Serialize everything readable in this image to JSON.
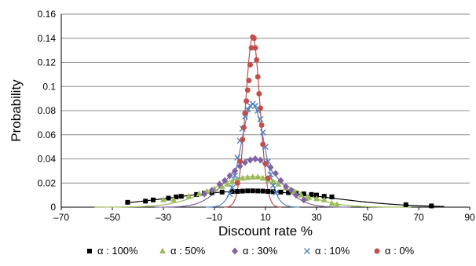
{
  "chart_data": {
    "type": "scatter",
    "title": "",
    "xlabel": "Discount rate %",
    "ylabel": "Probability",
    "xlim": [
      -70,
      90
    ],
    "ylim": [
      0,
      0.16
    ],
    "x_ticks": [
      -70,
      -50,
      -30,
      -10,
      10,
      30,
      50,
      70,
      90
    ],
    "x_tick_labels": [
      "–70",
      "–50",
      "–30",
      "–10",
      "10",
      "30",
      "50",
      "70",
      "90"
    ],
    "y_ticks": [
      0,
      0.02,
      0.04,
      0.06,
      0.08,
      0.1,
      0.12,
      0.14,
      0.16
    ],
    "y_tick_labels": [
      "0",
      "0.02",
      "0.04",
      "0.06",
      "0.08",
      "0.1",
      "0.12",
      "0.14",
      "0.16"
    ],
    "grid": "horizontal",
    "legend_position": "bottom",
    "series": [
      {
        "name": "α : 100%",
        "marker": "square",
        "color": "#000000",
        "line_color": "#000000",
        "curve": {
          "mean": 4,
          "sd": 30,
          "peak": 0.0133
        },
        "points": [
          [
            -44,
            0.004
          ],
          [
            -37,
            0.005
          ],
          [
            -34,
            0.006
          ],
          [
            -28,
            0.0075
          ],
          [
            -25,
            0.0085
          ],
          [
            -23,
            0.009
          ],
          [
            -17,
            0.0105
          ],
          [
            -14,
            0.0115
          ],
          [
            -11,
            0.012
          ],
          [
            -7,
            0.0125
          ],
          [
            -3,
            0.013
          ],
          [
            -1,
            0.013
          ],
          [
            1,
            0.0133
          ],
          [
            3,
            0.0135
          ],
          [
            5,
            0.0135
          ],
          [
            7,
            0.0134
          ],
          [
            9,
            0.0133
          ],
          [
            11,
            0.013
          ],
          [
            13,
            0.0128
          ],
          [
            16,
            0.0125
          ],
          [
            19,
            0.012
          ],
          [
            22,
            0.0112
          ],
          [
            25,
            0.011
          ],
          [
            28,
            0.0105
          ],
          [
            30,
            0.01
          ],
          [
            33,
            0.009
          ],
          [
            36,
            0.0085
          ],
          [
            65,
            0.002
          ],
          [
            75,
            0.001
          ]
        ]
      },
      {
        "name": "α : 50%",
        "marker": "triangle",
        "color": "#9BBB59",
        "line_color": "#9BBB59",
        "curve": {
          "mean": 5,
          "sd": 15.5,
          "peak": 0.0255
        },
        "points": [
          [
            -26,
            0.006
          ],
          [
            -20,
            0.009
          ],
          [
            -16,
            0.011
          ],
          [
            -13,
            0.013
          ],
          [
            -10,
            0.015
          ],
          [
            -7,
            0.017
          ],
          [
            -5,
            0.019
          ],
          [
            -3,
            0.021
          ],
          [
            -1,
            0.023
          ],
          [
            1,
            0.024
          ],
          [
            3,
            0.0245
          ],
          [
            5,
            0.025
          ],
          [
            7,
            0.025
          ],
          [
            9,
            0.024
          ],
          [
            11,
            0.0225
          ],
          [
            13,
            0.021
          ],
          [
            15,
            0.019
          ],
          [
            18,
            0.016
          ],
          [
            21,
            0.013
          ],
          [
            24,
            0.01
          ],
          [
            27,
            0.008
          ],
          [
            30,
            0.007
          ],
          [
            33,
            0.006
          ],
          [
            36,
            0.003
          ],
          [
            38,
            0.002
          ],
          [
            -30,
            0.006
          ],
          [
            26,
            0.007
          ]
        ]
      },
      {
        "name": "α : 30%",
        "marker": "diamond",
        "color": "#8064A2",
        "line_color": "#8064A2",
        "curve": {
          "mean": 5,
          "sd": 9.6,
          "peak": 0.0405
        },
        "points": [
          [
            -14,
            0.011
          ],
          [
            -11,
            0.014
          ],
          [
            -8,
            0.019
          ],
          [
            -6,
            0.022
          ],
          [
            -4,
            0.026
          ],
          [
            -2,
            0.03
          ],
          [
            0,
            0.034
          ],
          [
            2,
            0.037
          ],
          [
            4,
            0.039
          ],
          [
            6,
            0.04
          ],
          [
            8,
            0.039
          ],
          [
            10,
            0.036
          ],
          [
            12,
            0.033
          ],
          [
            14,
            0.028
          ],
          [
            16,
            0.022
          ],
          [
            18,
            0.017
          ],
          [
            20,
            0.014
          ],
          [
            22,
            0.01
          ],
          [
            25,
            0.006
          ]
        ]
      },
      {
        "name": "α : 10%",
        "marker": "x",
        "color": "#4F81BD",
        "line_color": "#4F81BD",
        "curve": {
          "mean": 5,
          "sd": 4.6,
          "peak": 0.085
        },
        "points": [
          [
            -4,
            0.011
          ],
          [
            -3,
            0.016
          ],
          [
            -2,
            0.026
          ],
          [
            -1,
            0.041
          ],
          [
            0,
            0.055
          ],
          [
            1,
            0.065
          ],
          [
            2,
            0.075
          ],
          [
            3,
            0.081
          ],
          [
            4,
            0.084
          ],
          [
            5,
            0.0855
          ],
          [
            6,
            0.084
          ],
          [
            7,
            0.08
          ],
          [
            8,
            0.073
          ],
          [
            9,
            0.062
          ],
          [
            10,
            0.05
          ],
          [
            11,
            0.038
          ],
          [
            12,
            0.027
          ],
          [
            13,
            0.018
          ],
          [
            14,
            0.012
          ]
        ]
      },
      {
        "name": "α : 0%",
        "marker": "circle",
        "color": "#C0504D",
        "line_color": "#C0504D",
        "curve": {
          "mean": 5,
          "sd": 2.8,
          "peak": 0.141
        },
        "points": [
          [
            -1,
            0.02
          ],
          [
            0,
            0.038
          ],
          [
            1,
            0.056
          ],
          [
            1.5,
            0.066
          ],
          [
            2,
            0.078
          ],
          [
            2.5,
            0.088
          ],
          [
            3,
            0.097
          ],
          [
            3.5,
            0.105
          ],
          [
            4,
            0.118
          ],
          [
            4.5,
            0.132
          ],
          [
            5,
            0.141
          ],
          [
            5.5,
            0.14
          ],
          [
            6,
            0.132
          ],
          [
            6.5,
            0.122
          ],
          [
            7,
            0.108
          ],
          [
            7.5,
            0.094
          ],
          [
            8,
            0.082
          ],
          [
            8.5,
            0.068
          ],
          [
            9,
            0.052
          ],
          [
            10,
            0.036
          ],
          [
            11,
            0.024
          ]
        ]
      }
    ]
  }
}
